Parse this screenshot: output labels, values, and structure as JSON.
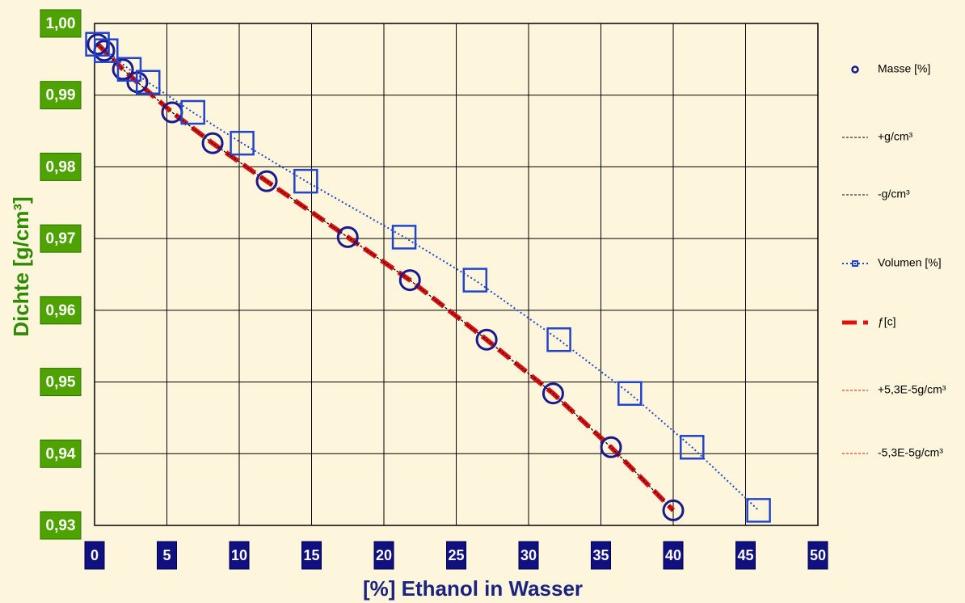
{
  "chart_data": {
    "type": "scatter",
    "xlabel": "[%] Ethanol in Wasser",
    "ylabel": "Dichte [g/cm³]",
    "xlim": [
      0,
      50
    ],
    "ylim": [
      0.93,
      1.0
    ],
    "xticks": [
      0,
      5,
      10,
      15,
      20,
      25,
      30,
      35,
      40,
      45,
      50
    ],
    "yticks": [
      {
        "value": 0.93,
        "label": "0,93"
      },
      {
        "value": 0.94,
        "label": "0,94"
      },
      {
        "value": 0.95,
        "label": "0,95"
      },
      {
        "value": 0.96,
        "label": "0,96"
      },
      {
        "value": 0.97,
        "label": "0,97"
      },
      {
        "value": 0.98,
        "label": "0,98"
      },
      {
        "value": 0.99,
        "label": "0,99"
      },
      {
        "value": 1.0,
        "label": "1,00"
      }
    ],
    "grid": true,
    "legend": "right",
    "series": [
      {
        "name": "Masse [%]",
        "color": "#1a1a8c",
        "marker": "circle",
        "line": false,
        "x": [
          0.22,
          0.67,
          1.96,
          2.96,
          5.36,
          8.16,
          11.9,
          17.5,
          21.8,
          27.1,
          31.7,
          35.7,
          40
        ],
        "values": [
          0.9971,
          0.9962,
          0.9936,
          0.9918,
          0.9876,
          0.9833,
          0.978,
          0.9702,
          0.9642,
          0.9559,
          0.9484,
          0.9409,
          0.9321
        ]
      },
      {
        "name": "+g/cm³",
        "color": "#000000",
        "marker": "none",
        "line": true,
        "dash": "3,2",
        "width": 1,
        "x": [
          0.22,
          0.67,
          1.96,
          2.96,
          5.36,
          8.16,
          11.9,
          17.5,
          21.8,
          27.1,
          31.7,
          35.7,
          40
        ],
        "values": [
          0.9971,
          0.9962,
          0.9936,
          0.9918,
          0.9876,
          0.9833,
          0.978,
          0.9702,
          0.9642,
          0.9559,
          0.9484,
          0.9409,
          0.9321
        ]
      },
      {
        "name": "-g/cm³",
        "color": "#000000",
        "marker": "none",
        "line": true,
        "dash": "3,2",
        "width": 1,
        "x": [
          0.22,
          0.67,
          1.96,
          2.96,
          5.36,
          8.16,
          11.9,
          17.5,
          21.8,
          27.1,
          31.7,
          35.7,
          40
        ],
        "values": [
          0.9971,
          0.9962,
          0.9936,
          0.9918,
          0.9876,
          0.9833,
          0.978,
          0.9702,
          0.9642,
          0.9559,
          0.9484,
          0.9409,
          0.9321
        ]
      },
      {
        "name": "Volumen [%]",
        "color": "#2244cc",
        "marker": "square",
        "line": true,
        "dash": "2,3",
        "width": 2,
        "x": [
          0.2,
          0.8,
          2.4,
          3.7,
          6.8,
          10.2,
          14.6,
          21.4,
          26.3,
          32.1,
          37,
          41.3,
          45.9
        ],
        "values": [
          0.9971,
          0.9962,
          0.9936,
          0.9918,
          0.9876,
          0.9833,
          0.978,
          0.9702,
          0.9642,
          0.9559,
          0.9484,
          0.9409,
          0.9321
        ]
      },
      {
        "name": "ƒ[c]",
        "color": "#e01010",
        "marker": "none",
        "line": true,
        "dash": "18,8",
        "width": 6,
        "x": [
          0.22,
          0.67,
          1.96,
          2.96,
          5.36,
          8.16,
          11.9,
          17.5,
          21.8,
          27.1,
          31.7,
          35.7,
          40
        ],
        "values": [
          0.9971,
          0.9962,
          0.9936,
          0.9918,
          0.9876,
          0.9833,
          0.978,
          0.9702,
          0.9642,
          0.9559,
          0.9484,
          0.9409,
          0.9321
        ]
      },
      {
        "name": "+5,3E-5g/cm³",
        "color": "#e01010",
        "marker": "none",
        "line": true,
        "dash": "3,2",
        "width": 1,
        "x": [
          0.22,
          0.67,
          1.96,
          2.96,
          5.36,
          8.16,
          11.9,
          17.5,
          21.8,
          27.1,
          31.7,
          35.7,
          40
        ],
        "values": [
          0.9971,
          0.9962,
          0.9936,
          0.9918,
          0.9876,
          0.9833,
          0.978,
          0.9702,
          0.9642,
          0.9559,
          0.9484,
          0.9409,
          0.9321
        ]
      },
      {
        "name": "-5,3E-5g/cm³",
        "color": "#e01010",
        "marker": "none",
        "line": true,
        "dash": "3,2",
        "width": 1,
        "x": [
          0.22,
          0.67,
          1.96,
          2.96,
          5.36,
          8.16,
          11.9,
          17.5,
          21.8,
          27.1,
          31.7,
          35.7,
          40
        ],
        "values": [
          0.9971,
          0.9962,
          0.9936,
          0.9918,
          0.9876,
          0.9833,
          0.978,
          0.9702,
          0.9642,
          0.9559,
          0.9484,
          0.9409,
          0.9321
        ]
      }
    ]
  }
}
